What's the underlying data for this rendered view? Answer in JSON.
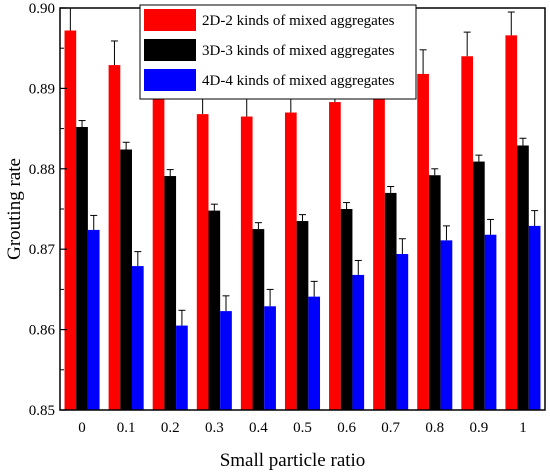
{
  "chart_data": {
    "type": "bar",
    "categories": [
      "0",
      "0.1",
      "0.2",
      "0.3",
      "0.4",
      "0.5",
      "0.6",
      "0.7",
      "0.8",
      "0.9",
      "1"
    ],
    "series": [
      {
        "name": "2D-2 kinds of mixed aggregates",
        "color": "#ff0000",
        "values": [
          0.8972,
          0.8929,
          0.8889,
          0.8868,
          0.8865,
          0.887,
          0.8883,
          0.8899,
          0.8918,
          0.894,
          0.8966
        ],
        "errors": [
          0.0028,
          0.003,
          0.003,
          0.0029,
          0.0028,
          0.0029,
          0.003,
          0.0028,
          0.003,
          0.003,
          0.0029
        ]
      },
      {
        "name": "3D-3 kinds of mixed aggregates",
        "color": "#000000",
        "values": [
          0.8852,
          0.8824,
          0.8791,
          0.8748,
          0.8725,
          0.8735,
          0.875,
          0.877,
          0.8792,
          0.8809,
          0.8829
        ],
        "errors": [
          0.0008,
          0.0009,
          0.0008,
          0.0008,
          0.0008,
          0.0008,
          0.0008,
          0.0008,
          0.0008,
          0.0008,
          0.0009
        ]
      },
      {
        "name": "4D-4 kinds of mixed aggregates",
        "color": "#0000ff",
        "values": [
          0.8724,
          0.8679,
          0.8605,
          0.8623,
          0.8629,
          0.8641,
          0.8668,
          0.8694,
          0.8711,
          0.8718,
          0.8729
        ],
        "errors": [
          0.0018,
          0.0018,
          0.0019,
          0.0019,
          0.0021,
          0.0019,
          0.0018,
          0.0019,
          0.0018,
          0.0019,
          0.0019
        ]
      }
    ],
    "xlabel": "Small particle ratio",
    "ylabel": "Grouting rate",
    "ylim": [
      0.85,
      0.9
    ],
    "yticks": [
      "0.85",
      "0.86",
      "0.87",
      "0.88",
      "0.89",
      "0.90"
    ],
    "legend_position": "top-center",
    "grid": false
  }
}
